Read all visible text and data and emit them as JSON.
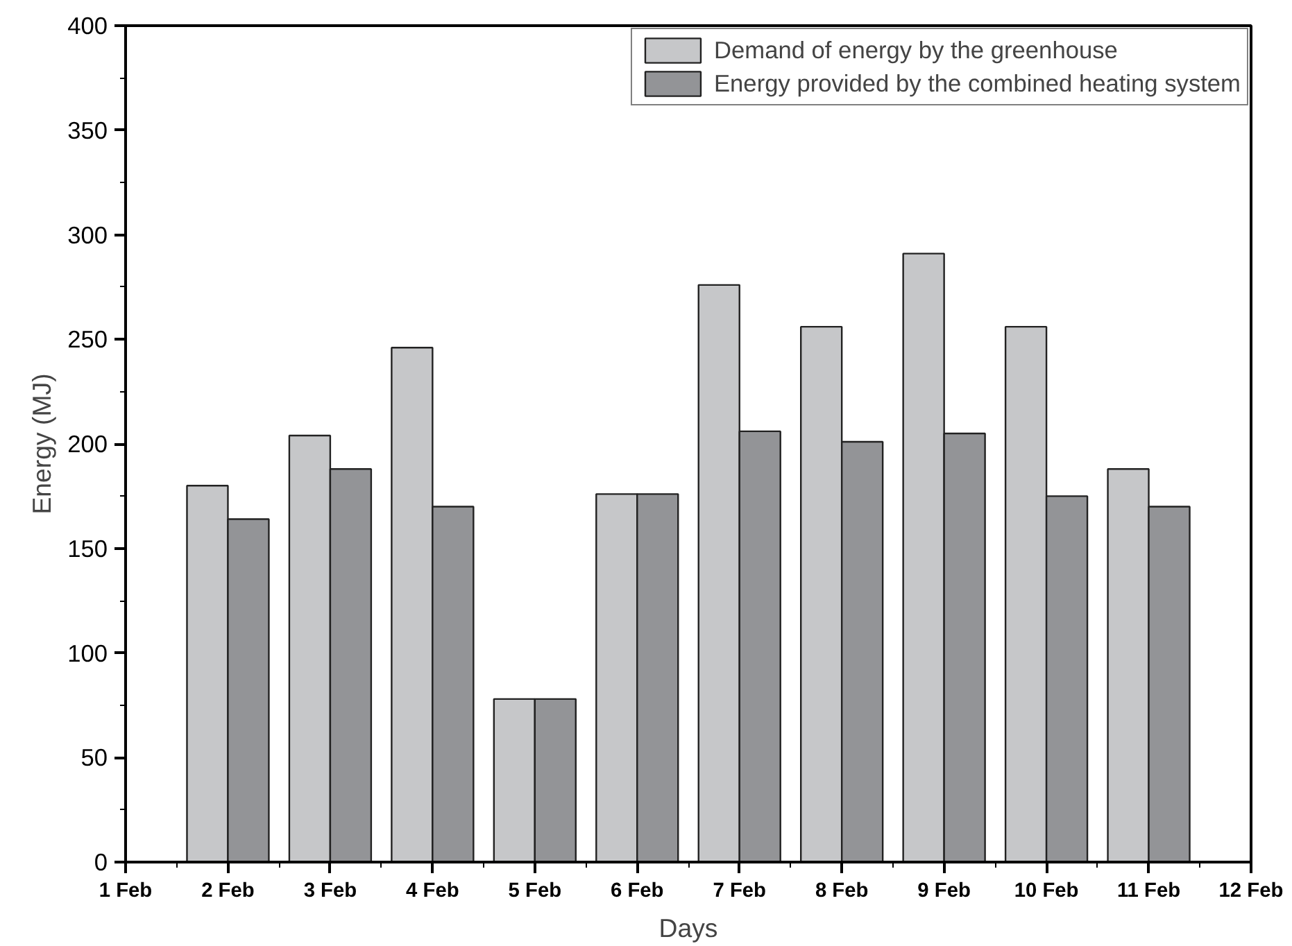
{
  "chart_data": {
    "type": "bar",
    "xlabel": "Days",
    "ylabel": "Energy (MJ)",
    "categories": [
      "1 Feb",
      "2 Feb",
      "3 Feb",
      "4 Feb",
      "5 Feb",
      "6 Feb",
      "7 Feb",
      "8 Feb",
      "9 Feb",
      "10 Feb",
      "11 Feb",
      "12 Feb"
    ],
    "series": [
      {
        "name": "Demand of energy by the greenhouse",
        "color": "#c6c7c9",
        "values": [
          null,
          180,
          204,
          246,
          78,
          176,
          276,
          256,
          291,
          256,
          188,
          null
        ]
      },
      {
        "name": "Energy provided by the combined heating system",
        "color": "#939497",
        "values": [
          null,
          164,
          188,
          170,
          78,
          176,
          206,
          201,
          205,
          175,
          170,
          null
        ]
      }
    ],
    "ylim": [
      0,
      400
    ],
    "yticks": [
      0,
      50,
      100,
      150,
      200,
      250,
      300,
      350,
      400
    ],
    "grid": false,
    "legend": "top right"
  }
}
